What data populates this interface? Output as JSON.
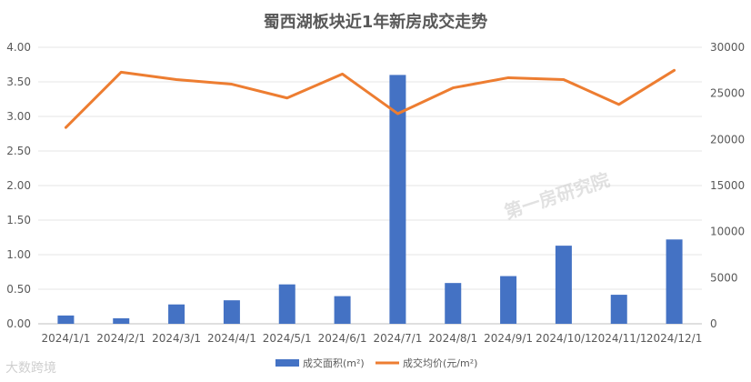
{
  "chart_data": {
    "type": "bar+line",
    "title": "蜀西湖板块近1年新房成交走势",
    "categories": [
      "2024/1/1",
      "2024/2/1",
      "2024/3/1",
      "2024/4/1",
      "2024/5/1",
      "2024/6/1",
      "2024/7/1",
      "2024/8/1",
      "2024/9/1",
      "2024/10/1",
      "2024/11/1",
      "2024/12/1"
    ],
    "series": [
      {
        "name": "成交面积(m²)",
        "type": "bar",
        "axis": "left",
        "color": "#4472C4",
        "values": [
          0.12,
          0.08,
          0.28,
          0.34,
          0.57,
          0.4,
          3.6,
          0.59,
          0.69,
          1.13,
          0.42,
          1.22
        ]
      },
      {
        "name": "成交均价(元/m²)",
        "type": "line",
        "axis": "right",
        "color": "#ED7D31",
        "values": [
          21300,
          27300,
          26500,
          26000,
          24500,
          27100,
          22800,
          25600,
          26700,
          26500,
          23800,
          27500
        ]
      }
    ],
    "y_left": {
      "range": [
        0,
        4
      ],
      "ticks": [
        "0.00",
        "0.50",
        "1.00",
        "1.50",
        "2.00",
        "2.50",
        "3.00",
        "3.50",
        "4.00"
      ]
    },
    "y_right": {
      "range": [
        0,
        30000
      ],
      "ticks": [
        "0",
        "5000",
        "10000",
        "15000",
        "20000",
        "25000",
        "30000"
      ]
    },
    "grid": true,
    "legend": "bottom"
  },
  "watermark": {
    "brand": "大数跨境",
    "center": "第一房研究院"
  }
}
